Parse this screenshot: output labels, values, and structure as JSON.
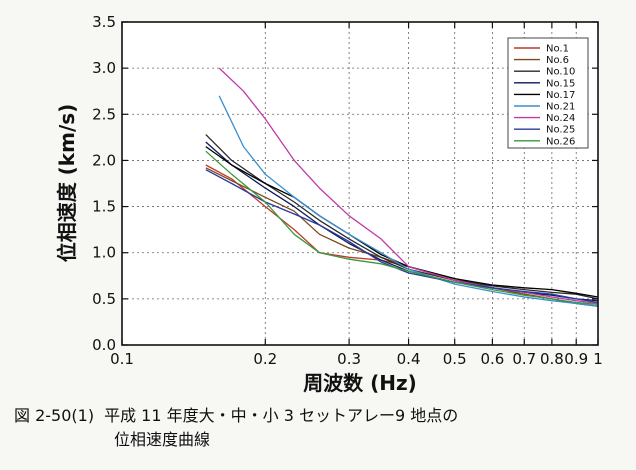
{
  "caption": {
    "figure_number": "図 2-50(1)",
    "line1": "平成 11 年度大・中・小 3 セットアレー9 地点の",
    "line2": "位相速度曲線"
  },
  "chart_data": {
    "type": "line",
    "title": "",
    "xlabel": "周波数 (Hz)",
    "ylabel": "位相速度 (km/s)",
    "x_scale": "log",
    "xlim": [
      0.1,
      1.0
    ],
    "ylim": [
      0.0,
      3.5
    ],
    "x_ticks": [
      0.1,
      0.2,
      0.3,
      0.4,
      0.5,
      0.6,
      0.7,
      0.8,
      0.9,
      1.0
    ],
    "x_tick_labels": [
      "0.1",
      "0.2",
      "0.3",
      "0.4",
      "0.5",
      "0.6",
      "0.7",
      "0.8",
      "0.9",
      "1"
    ],
    "y_ticks": [
      0.0,
      0.5,
      1.0,
      1.5,
      2.0,
      2.5,
      3.0,
      3.5
    ],
    "y_tick_labels": [
      "0.0",
      "0.5",
      "1.0",
      "1.5",
      "2.0",
      "2.5",
      "3.0",
      "3.5"
    ],
    "grid": true,
    "legend_position": "top-right",
    "series": [
      {
        "name": "No.1",
        "color": "#c0392b",
        "x": [
          0.15,
          0.17,
          0.2,
          0.23,
          0.26,
          0.3,
          0.35,
          0.4,
          0.5,
          0.6,
          0.7,
          0.8,
          0.9,
          1.0
        ],
        "y": [
          1.95,
          1.8,
          1.5,
          1.25,
          1.0,
          0.95,
          0.92,
          0.85,
          0.7,
          0.62,
          0.55,
          0.5,
          0.45,
          0.42
        ]
      },
      {
        "name": "No.6",
        "color": "#7a4a1a",
        "x": [
          0.15,
          0.17,
          0.2,
          0.23,
          0.26,
          0.3,
          0.35,
          0.4,
          0.5,
          0.6,
          0.7,
          0.8,
          0.9,
          1.0
        ],
        "y": [
          1.92,
          1.78,
          1.6,
          1.45,
          1.2,
          1.05,
          0.95,
          0.85,
          0.72,
          0.62,
          0.55,
          0.5,
          0.45,
          0.42
        ]
      },
      {
        "name": "No.10",
        "color": "#2a2a2a",
        "x": [
          0.15,
          0.17,
          0.2,
          0.23,
          0.26,
          0.3,
          0.35,
          0.4,
          0.5,
          0.6,
          0.7,
          0.8,
          0.9,
          1.0
        ],
        "y": [
          2.28,
          2.0,
          1.75,
          1.55,
          1.35,
          1.15,
          0.95,
          0.82,
          0.7,
          0.64,
          0.6,
          0.57,
          0.55,
          0.5
        ]
      },
      {
        "name": "No.15",
        "color": "#0a1a5a",
        "x": [
          0.15,
          0.17,
          0.2,
          0.23,
          0.26,
          0.3,
          0.35,
          0.4,
          0.5,
          0.6,
          0.7,
          0.8,
          0.9,
          1.0
        ],
        "y": [
          2.2,
          1.95,
          1.7,
          1.5,
          1.3,
          1.1,
          0.92,
          0.8,
          0.68,
          0.62,
          0.57,
          0.54,
          0.5,
          0.48
        ]
      },
      {
        "name": "No.17",
        "color": "#000000",
        "x": [
          0.15,
          0.17,
          0.2,
          0.23,
          0.26,
          0.3,
          0.35,
          0.4,
          0.5,
          0.6,
          0.7,
          0.8,
          0.9,
          1.0
        ],
        "y": [
          2.15,
          1.95,
          1.75,
          1.6,
          1.4,
          1.2,
          0.98,
          0.85,
          0.72,
          0.65,
          0.62,
          0.6,
          0.56,
          0.52
        ]
      },
      {
        "name": "No.21",
        "color": "#3a8fd0",
        "x": [
          0.16,
          0.18,
          0.2,
          0.23,
          0.26,
          0.3,
          0.35,
          0.4,
          0.5,
          0.6,
          0.7,
          0.8,
          0.9,
          1.0
        ],
        "y": [
          2.7,
          2.15,
          1.85,
          1.6,
          1.4,
          1.2,
          1.0,
          0.82,
          0.66,
          0.58,
          0.52,
          0.48,
          0.45,
          0.42
        ]
      },
      {
        "name": "No.24",
        "color": "#c03aa8",
        "x": [
          0.16,
          0.18,
          0.2,
          0.23,
          0.26,
          0.3,
          0.35,
          0.4,
          0.5,
          0.6,
          0.7,
          0.8,
          0.9,
          1.0
        ],
        "y": [
          3.0,
          2.75,
          2.45,
          2.0,
          1.7,
          1.4,
          1.15,
          0.85,
          0.7,
          0.62,
          0.57,
          0.52,
          0.48,
          0.45
        ]
      },
      {
        "name": "No.25",
        "color": "#2a3aa0",
        "x": [
          0.15,
          0.17,
          0.2,
          0.23,
          0.26,
          0.3,
          0.35,
          0.4,
          0.5,
          0.6,
          0.7,
          0.8,
          0.9,
          1.0
        ],
        "y": [
          1.9,
          1.75,
          1.55,
          1.42,
          1.3,
          1.12,
          0.9,
          0.78,
          0.68,
          0.62,
          0.58,
          0.55,
          0.5,
          0.46
        ]
      },
      {
        "name": "No.26",
        "color": "#3a9a3a",
        "x": [
          0.15,
          0.17,
          0.2,
          0.23,
          0.26,
          0.3,
          0.35,
          0.4,
          0.5,
          0.6,
          0.7,
          0.8,
          0.9,
          1.0
        ],
        "y": [
          2.1,
          1.85,
          1.55,
          1.2,
          1.0,
          0.93,
          0.88,
          0.8,
          0.68,
          0.6,
          0.54,
          0.5,
          0.46,
          0.44
        ]
      }
    ]
  }
}
